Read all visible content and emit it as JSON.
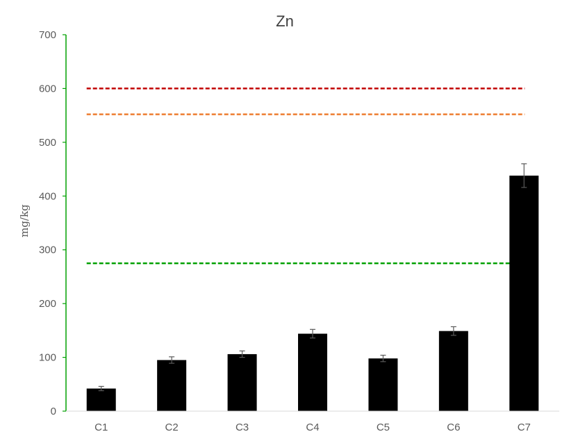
{
  "chart_data": {
    "type": "bar",
    "title": "Zn",
    "xlabel": "",
    "ylabel": "mg/kg",
    "categories": [
      "C1",
      "C2",
      "C3",
      "C4",
      "C5",
      "C6",
      "C7"
    ],
    "series": [
      {
        "values": [
          42,
          95,
          106,
          144,
          98,
          149,
          438
        ],
        "errors": [
          4,
          6,
          6,
          8,
          6,
          8,
          22
        ],
        "color": "#000000"
      }
    ],
    "reference_lines": [
      {
        "value": 600,
        "color": "#c00000",
        "style": "dashed"
      },
      {
        "value": 552,
        "color": "#ed7d31",
        "style": "dashed"
      },
      {
        "value": 275,
        "color": "#00a000",
        "style": "dashed"
      }
    ],
    "ylim": [
      0,
      700
    ],
    "yticks": [
      0,
      100,
      200,
      300,
      400,
      500,
      600,
      700
    ],
    "grid": false,
    "axis_color": "#00a000"
  }
}
